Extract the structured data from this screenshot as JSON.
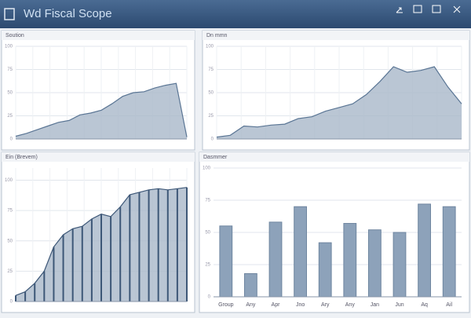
{
  "header": {
    "title": "Wd Fiscal Scope"
  },
  "chart_data": [
    {
      "type": "area",
      "title": "Soution",
      "x": [
        0,
        1,
        2,
        3,
        4,
        5,
        6,
        7,
        8,
        9,
        10,
        11,
        12,
        13,
        14,
        15,
        16
      ],
      "xlim": [
        0,
        16
      ],
      "values": [
        3,
        6,
        10,
        14,
        18,
        20,
        26,
        28,
        31,
        38,
        46,
        50,
        51,
        55,
        58,
        60,
        2
      ],
      "ylim": [
        0,
        100
      ],
      "yticks": [
        0,
        25,
        50,
        75,
        100
      ],
      "grid": true,
      "color": "#5a7594",
      "drop_lines": false
    },
    {
      "type": "area",
      "title": "Dn mmn",
      "x": [
        0,
        1,
        2,
        3,
        4,
        5,
        6,
        7,
        8,
        9,
        10,
        11,
        12,
        13,
        14,
        15,
        16,
        17,
        18
      ],
      "xlim": [
        0,
        18
      ],
      "values": [
        2,
        4,
        14,
        13,
        15,
        16,
        22,
        24,
        30,
        34,
        38,
        48,
        62,
        78,
        72,
        74,
        78,
        56,
        38
      ],
      "ylim": [
        0,
        100
      ],
      "yticks": [
        0,
        25,
        50,
        75,
        100
      ],
      "grid": true,
      "color": "#5a7594",
      "drop_lines": false
    },
    {
      "type": "area",
      "title": "Ein (Brevem)",
      "x": [
        0,
        1,
        2,
        3,
        4,
        5,
        6,
        7,
        8,
        9,
        10,
        11,
        12,
        13,
        14,
        15,
        16,
        17,
        18
      ],
      "xlim": [
        0,
        18
      ],
      "values": [
        5,
        8,
        15,
        25,
        45,
        55,
        60,
        62,
        68,
        72,
        70,
        78,
        88,
        90,
        92,
        93,
        92,
        93,
        94
      ],
      "ylim": [
        0,
        110
      ],
      "yticks": [
        0,
        25,
        50,
        75,
        100
      ],
      "grid": true,
      "color": "#3d5777",
      "drop_lines": true
    },
    {
      "type": "bar",
      "title": "Dasmmer",
      "categories": [
        "Group",
        "Any",
        "Apr",
        "Jno",
        "Ary",
        "Any",
        "Jan",
        "Jun",
        "Aq",
        "Ail"
      ],
      "values": [
        55,
        18,
        58,
        70,
        42,
        57,
        52,
        50,
        72,
        70
      ],
      "ylim": [
        0,
        100
      ],
      "yticks": [
        0,
        25,
        50,
        75,
        100
      ],
      "grid": true,
      "color": "#8da2ba"
    }
  ]
}
